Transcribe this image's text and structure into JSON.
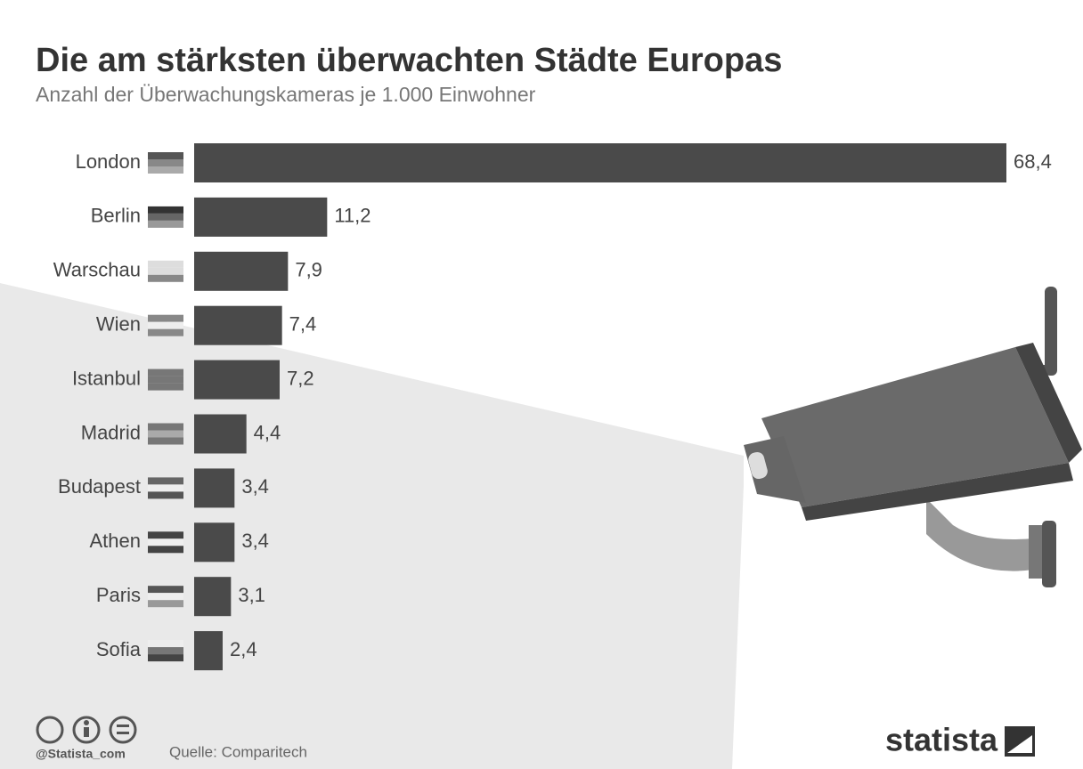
{
  "chart_data": {
    "type": "bar",
    "orientation": "horizontal",
    "title": "Die am stärksten überwachten Städte Europas",
    "subtitle": "Anzahl der Überwachungskameras je 1.000 Einwohner",
    "categories": [
      "London",
      "Berlin",
      "Warschau",
      "Wien",
      "Istanbul",
      "Madrid",
      "Budapest",
      "Athen",
      "Paris",
      "Sofia"
    ],
    "values": [
      68.4,
      11.2,
      7.9,
      7.4,
      7.2,
      4.4,
      3.4,
      3.4,
      3.1,
      2.4
    ],
    "value_labels": [
      "68,4",
      "11,2",
      "7,9",
      "7,4",
      "7,2",
      "4,4",
      "3,4",
      "3,4",
      "3,1",
      "2,4"
    ],
    "color": "#4a4a4a",
    "source": "Quelle: Comparitech",
    "handle": "@Statista_com",
    "logo": "statista"
  }
}
